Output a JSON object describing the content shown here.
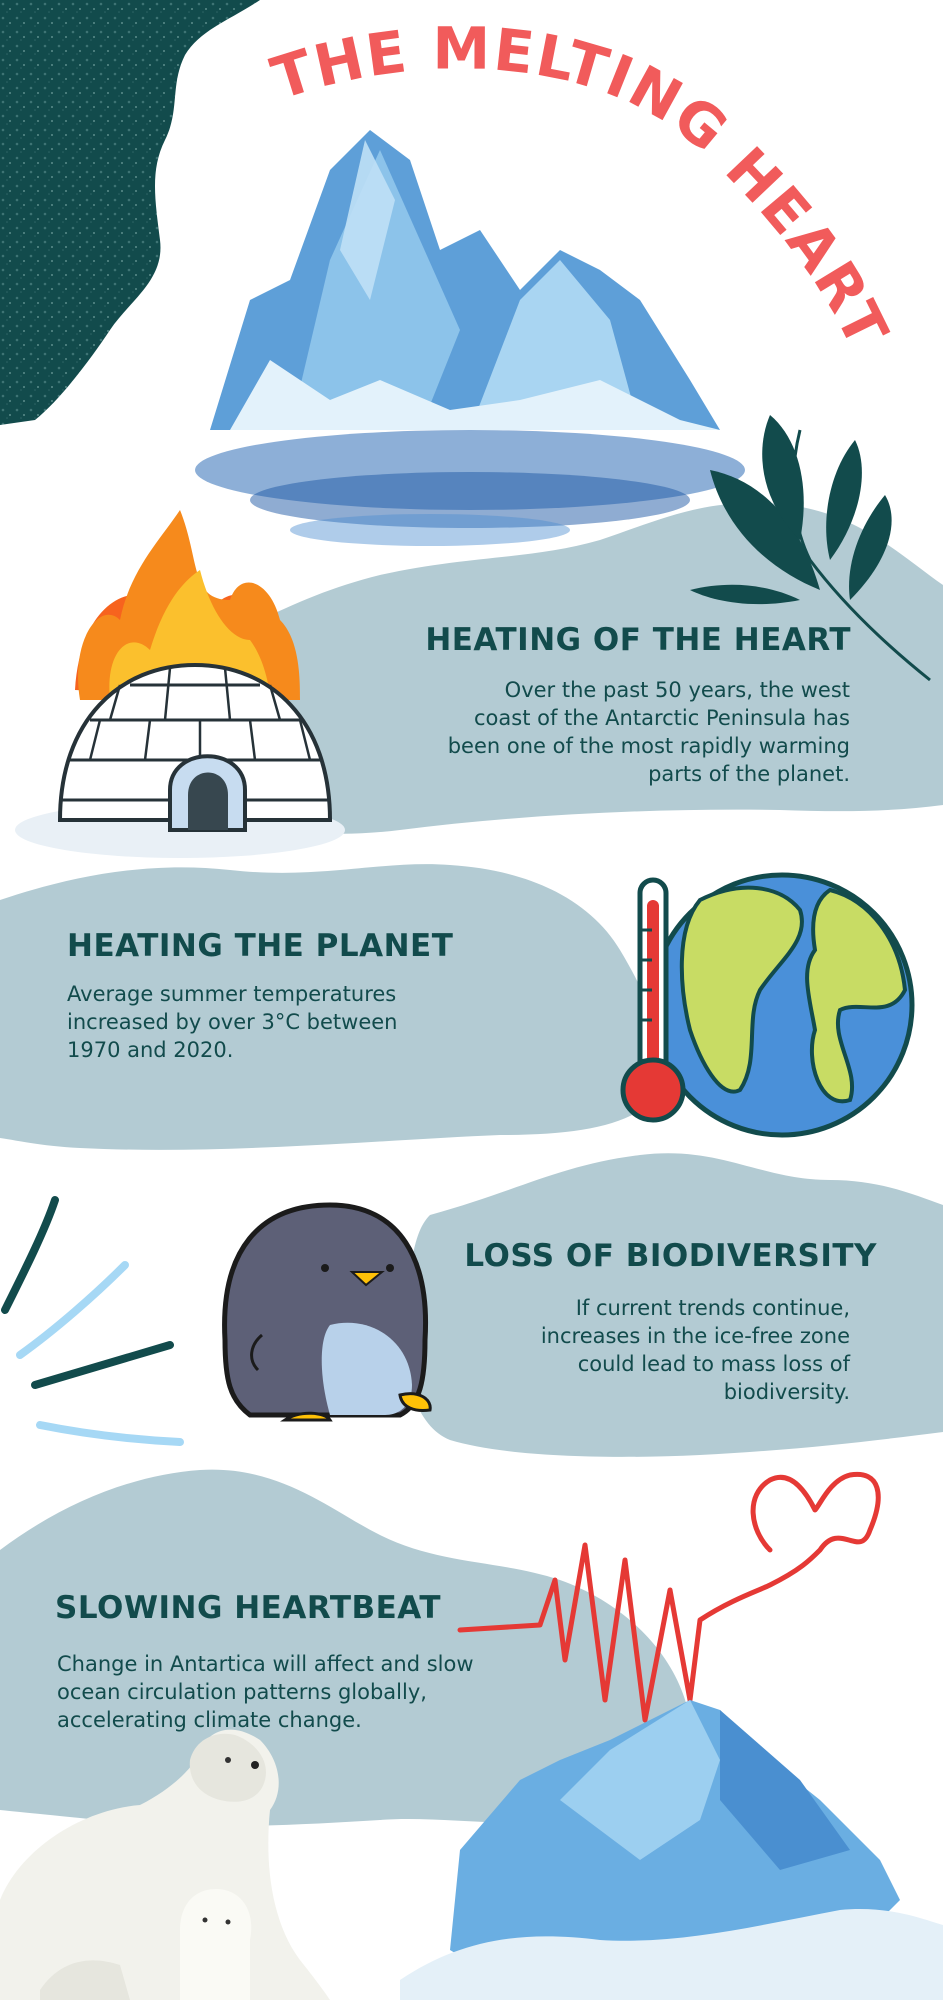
{
  "title": "THE MELTING HEART",
  "sections": [
    {
      "heading": "HEATING OF THE HEART",
      "lines": [
        "Over the past 50 years, the west",
        "coast of the Antarctic Peninsula has",
        "been one of the most rapidly warming",
        "parts of the planet."
      ]
    },
    {
      "heading": "HEATING THE PLANET",
      "lines": [
        "Average summer temperatures",
        "increased by over 3°C between",
        "1970 and 2020."
      ]
    },
    {
      "heading": "LOSS OF BIODIVERSITY",
      "lines": [
        "If current trends continue,",
        "increases in the ice-free zone",
        "could lead to mass loss of",
        "biodiversity."
      ]
    },
    {
      "heading": "SLOWING HEARTBEAT",
      "lines": [
        "Change in Antartica will affect and slow",
        "ocean circulation patterns globally,",
        "accelerating climate change."
      ]
    }
  ],
  "colors": {
    "title": "#f15b5b",
    "heading": "#124b4c",
    "blob": "#b3cbd3",
    "texture": "#124b4c",
    "heart_line": "#e53935"
  },
  "icons": [
    "iceberg-illustration",
    "leaf-branch-icon",
    "burning-igloo-icon",
    "thermometer-icon",
    "earth-globe-icon",
    "penguin-icon",
    "motion-lines-icon",
    "heartbeat-line-icon",
    "polar-bear-illustration",
    "ice-floe-illustration"
  ]
}
